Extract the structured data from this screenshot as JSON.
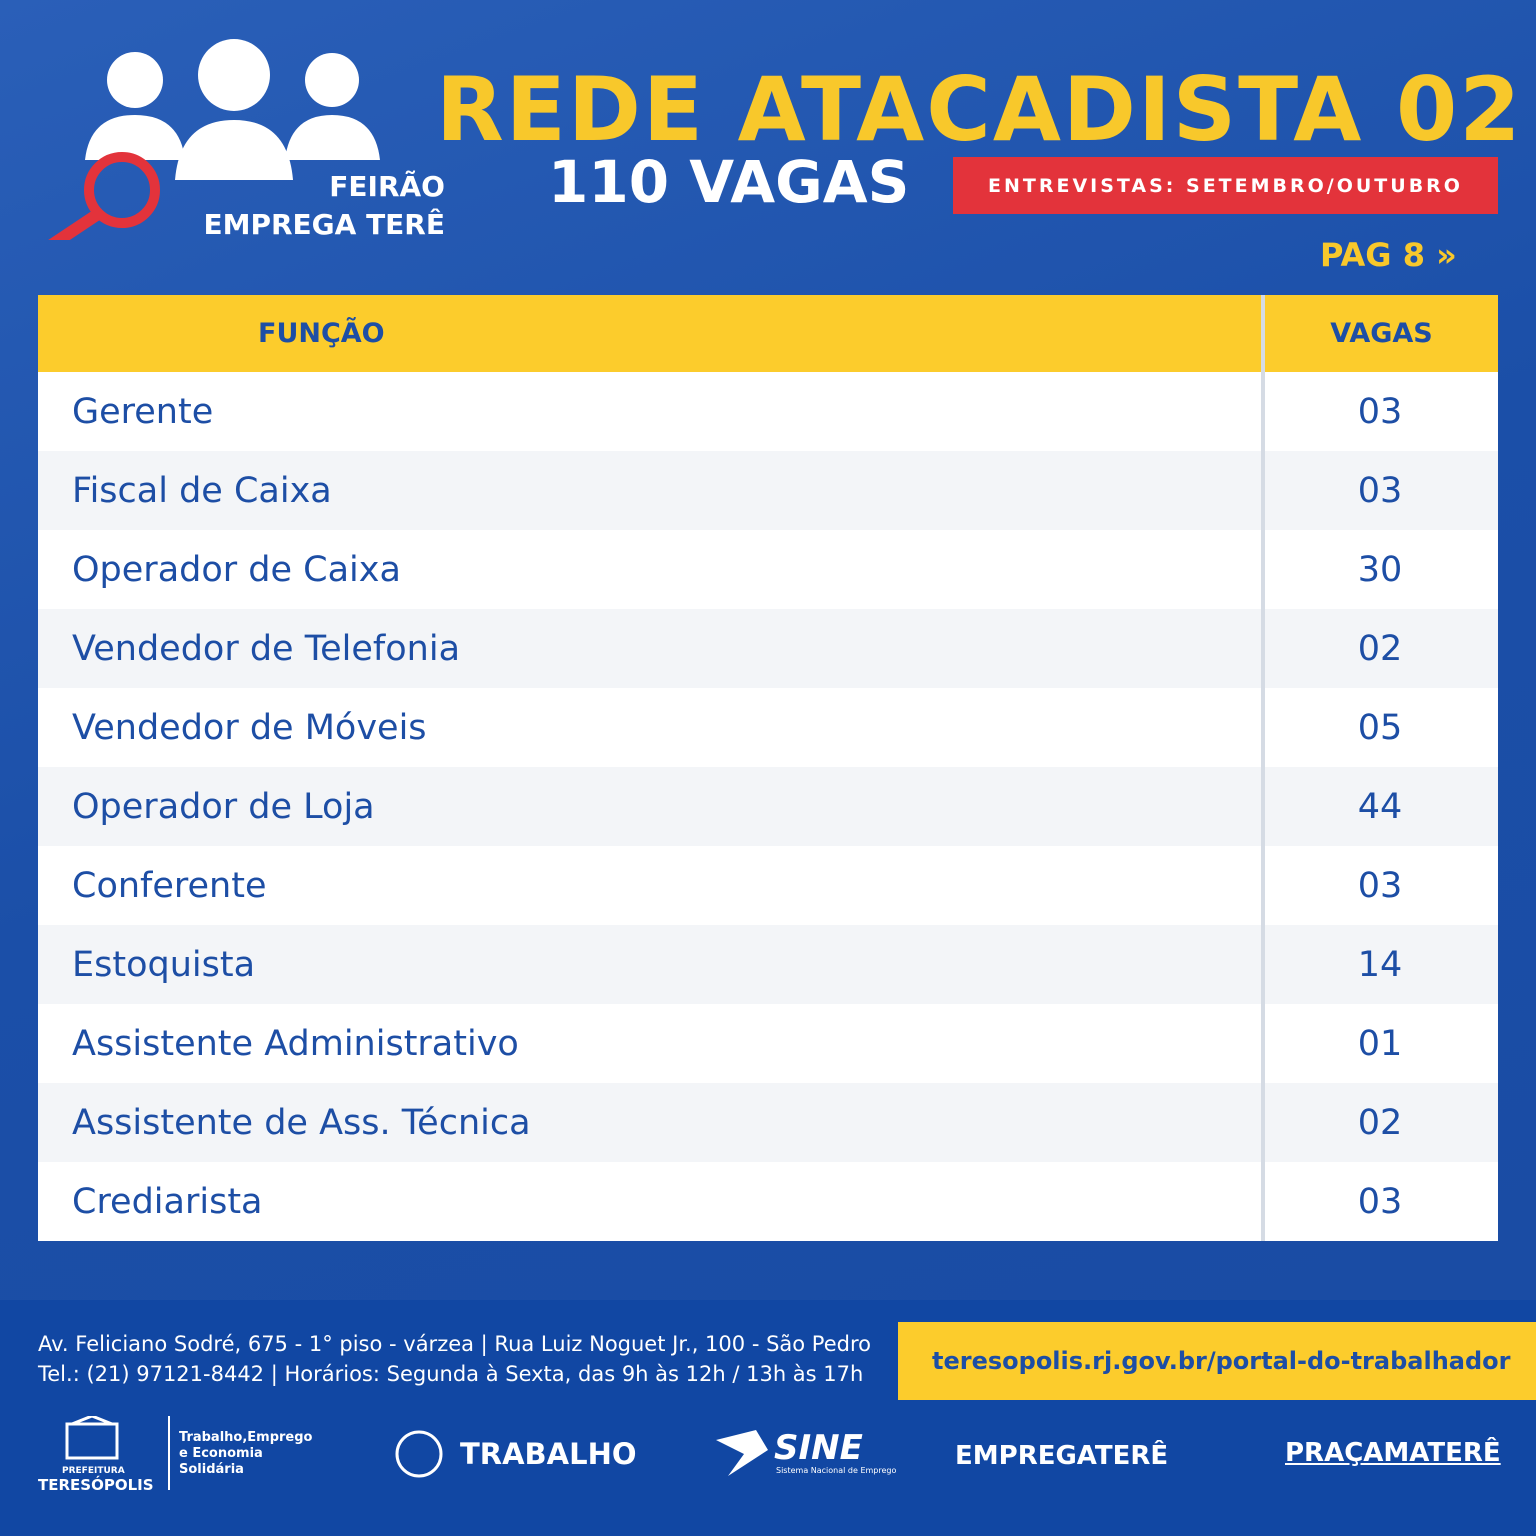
{
  "header": {
    "logo_line1": "FEIRÃO",
    "logo_line2": "EMPREGA TERÊ",
    "title": "REDE ATACADISTA 02",
    "subtitle": "110 VAGAS",
    "badge": "ENTREVISTAS: SETEMBRO/OUTUBRO",
    "page": "PAG 8 »"
  },
  "table": {
    "columns": [
      "FUNÇÃO",
      "VAGAS"
    ],
    "rows": [
      [
        "Gerente",
        "03"
      ],
      [
        "Fiscal de Caixa",
        "03"
      ],
      [
        "Operador de Caixa",
        "30"
      ],
      [
        "Vendedor de Telefonia",
        "02"
      ],
      [
        "Vendedor de Móveis",
        "05"
      ],
      [
        "Operador de Loja",
        "44"
      ],
      [
        "Conferente",
        "03"
      ],
      [
        "Estoquista",
        "14"
      ],
      [
        "Assistente Administrativo",
        "01"
      ],
      [
        "Assistente de Ass. Técnica",
        "02"
      ],
      [
        "Crediarista",
        "03"
      ]
    ]
  },
  "footer": {
    "address_line1": "Av. Feliciano Sodré, 675 - 1° piso - várzea | Rua Luiz Noguet Jr., 100 - São Pedro",
    "address_line2": "Tel.: (21) 97121-8442 | Horários: Segunda à Sexta, das 9h às 12h / 13h às 17h",
    "url": "teresopolis.rj.gov.br/portal-do-trabalhador",
    "logos": {
      "prefeitura_small": "PREFEITURA",
      "prefeitura": "TERESÓPOLIS",
      "secretaria": "Trabalho,Emprego e Economia Solidária",
      "trabalho": "TRABALHO",
      "sine": "SINE",
      "sine_sub": "Sistema Nacional de Emprego",
      "empregatere": "EMPREGATERÊ",
      "pracamatere": "PRAÇAMATERÊ"
    }
  }
}
